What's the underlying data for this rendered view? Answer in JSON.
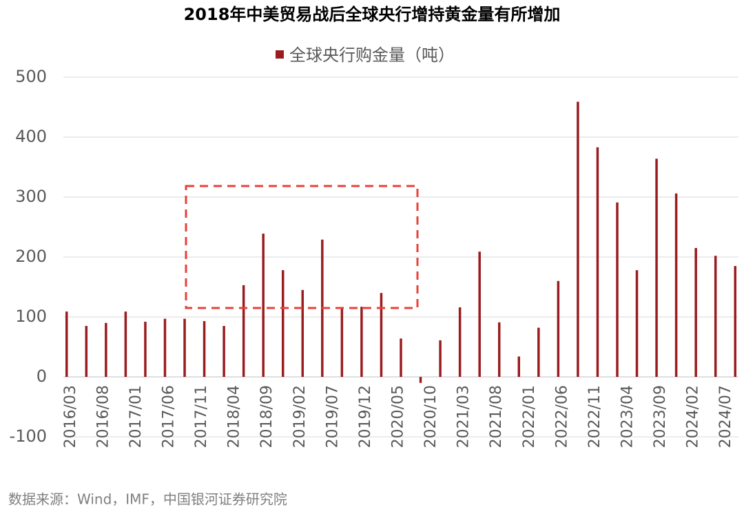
{
  "chart_data": {
    "type": "bar",
    "title": "2018年中美贸易战后全球央行增持黄金量有所增加",
    "source": "数据来源：Wind，IMF，中国银河证券研究院",
    "categories": [
      "2016/03",
      null,
      null,
      null,
      null,
      "2016/08",
      null,
      null,
      null,
      null,
      "2017/01",
      null,
      null,
      null,
      null,
      "2017/06",
      null,
      null,
      null,
      null,
      "2017/11",
      null,
      null,
      null,
      null,
      "2018/04",
      null,
      null,
      null,
      null,
      "2018/09",
      null,
      null,
      null,
      null,
      "2019/02",
      null,
      null,
      null,
      null,
      "2019/07",
      null,
      null,
      null,
      null,
      "2019/12",
      null,
      null,
      null,
      null,
      "2020/05",
      null,
      null,
      null,
      null,
      "2020/10",
      null,
      null,
      null,
      null,
      "2021/03",
      null,
      null,
      null,
      null,
      "2021/08",
      null,
      null,
      null,
      null,
      "2022/01",
      null,
      null,
      null,
      null,
      "2022/06",
      null,
      null,
      null,
      null,
      "2022/11",
      null,
      null,
      null,
      null,
      "2023/04",
      null,
      null,
      null,
      null,
      "2023/09",
      null,
      null,
      null,
      null,
      "2024/02",
      null,
      null,
      null,
      null,
      "2024/07",
      null,
      null
    ],
    "series": [
      {
        "name": "全球央行购金量（吨）",
        "color": "#9b1c1f",
        "values": [
          109,
          null,
          null,
          85,
          null,
          null,
          90,
          null,
          null,
          109,
          null,
          null,
          92,
          null,
          null,
          97,
          null,
          null,
          97,
          null,
          null,
          93,
          null,
          null,
          85,
          null,
          null,
          153,
          null,
          null,
          239,
          null,
          null,
          178,
          null,
          null,
          145,
          null,
          null,
          229,
          null,
          null,
          114,
          null,
          null,
          117,
          null,
          null,
          140,
          null,
          null,
          64,
          null,
          null,
          -10,
          null,
          null,
          61,
          null,
          null,
          116,
          null,
          null,
          209,
          null,
          null,
          91,
          null,
          null,
          34,
          null,
          null,
          82,
          null,
          null,
          160,
          null,
          null,
          459,
          null,
          null,
          383,
          null,
          null,
          291,
          null,
          null,
          178,
          null,
          null,
          364,
          null,
          null,
          306,
          null,
          null,
          215,
          null,
          null,
          202,
          null,
          null,
          185
        ]
      }
    ],
    "ylim": [
      -100,
      500
    ],
    "yticks": [
      -100,
      0,
      100,
      200,
      300,
      400,
      500
    ],
    "grid": true,
    "legend": "top"
  }
}
